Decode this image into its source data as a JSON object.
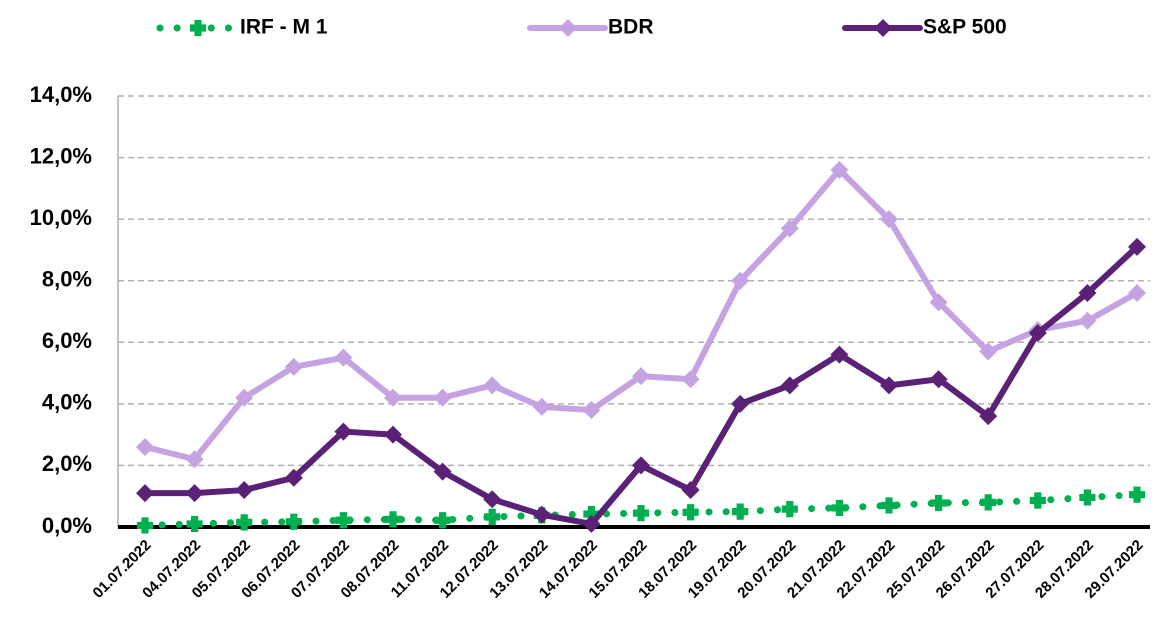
{
  "chart_data": {
    "type": "line",
    "categories": [
      "01.07.2022",
      "04.07.2022",
      "05.07.2022",
      "06.07.2022",
      "07.07.2022",
      "08.07.2022",
      "11.07.2022",
      "12.07.2022",
      "13.07.2022",
      "14.07.2022",
      "15.07.2022",
      "18.07.2022",
      "19.07.2022",
      "20.07.2022",
      "21.07.2022",
      "22.07.2022",
      "25.07.2022",
      "26.07.2022",
      "27.07.2022",
      "28.07.2022",
      "29.07.2022"
    ],
    "series": [
      {
        "name": "IRF - M 1",
        "color": "#00b050",
        "dotted": true,
        "values": [
          0.05,
          0.1,
          0.15,
          0.17,
          0.22,
          0.25,
          0.22,
          0.33,
          0.38,
          0.42,
          0.45,
          0.48,
          0.5,
          0.58,
          0.62,
          0.7,
          0.78,
          0.8,
          0.86,
          0.96,
          1.05
        ]
      },
      {
        "name": "BDR",
        "color": "#c5a3e2",
        "values": [
          2.6,
          2.2,
          4.2,
          5.2,
          5.5,
          4.2,
          4.2,
          4.6,
          3.9,
          3.8,
          4.9,
          4.8,
          8.0,
          9.7,
          11.6,
          10.0,
          7.3,
          5.7,
          6.4,
          6.7,
          7.6
        ]
      },
      {
        "name": "S&P 500",
        "color": "#5b2176",
        "values": [
          1.1,
          1.1,
          1.2,
          1.6,
          3.1,
          3.0,
          1.8,
          0.9,
          0.4,
          0.1,
          2.0,
          1.2,
          4.0,
          4.6,
          5.6,
          4.6,
          4.8,
          3.6,
          6.3,
          7.6,
          9.1
        ]
      }
    ],
    "ylim": [
      0,
      14
    ],
    "yticks": [
      {
        "value": 0,
        "label": "0,0%"
      },
      {
        "value": 2,
        "label": "2,0%"
      },
      {
        "value": 4,
        "label": "4,0%"
      },
      {
        "value": 6,
        "label": "6,0%"
      },
      {
        "value": 8,
        "label": "8,0%"
      },
      {
        "value": 10,
        "label": "10,0%"
      },
      {
        "value": 12,
        "label": "12,0%"
      },
      {
        "value": 14,
        "label": "14,0%"
      }
    ],
    "grid": true,
    "legend": "top"
  }
}
